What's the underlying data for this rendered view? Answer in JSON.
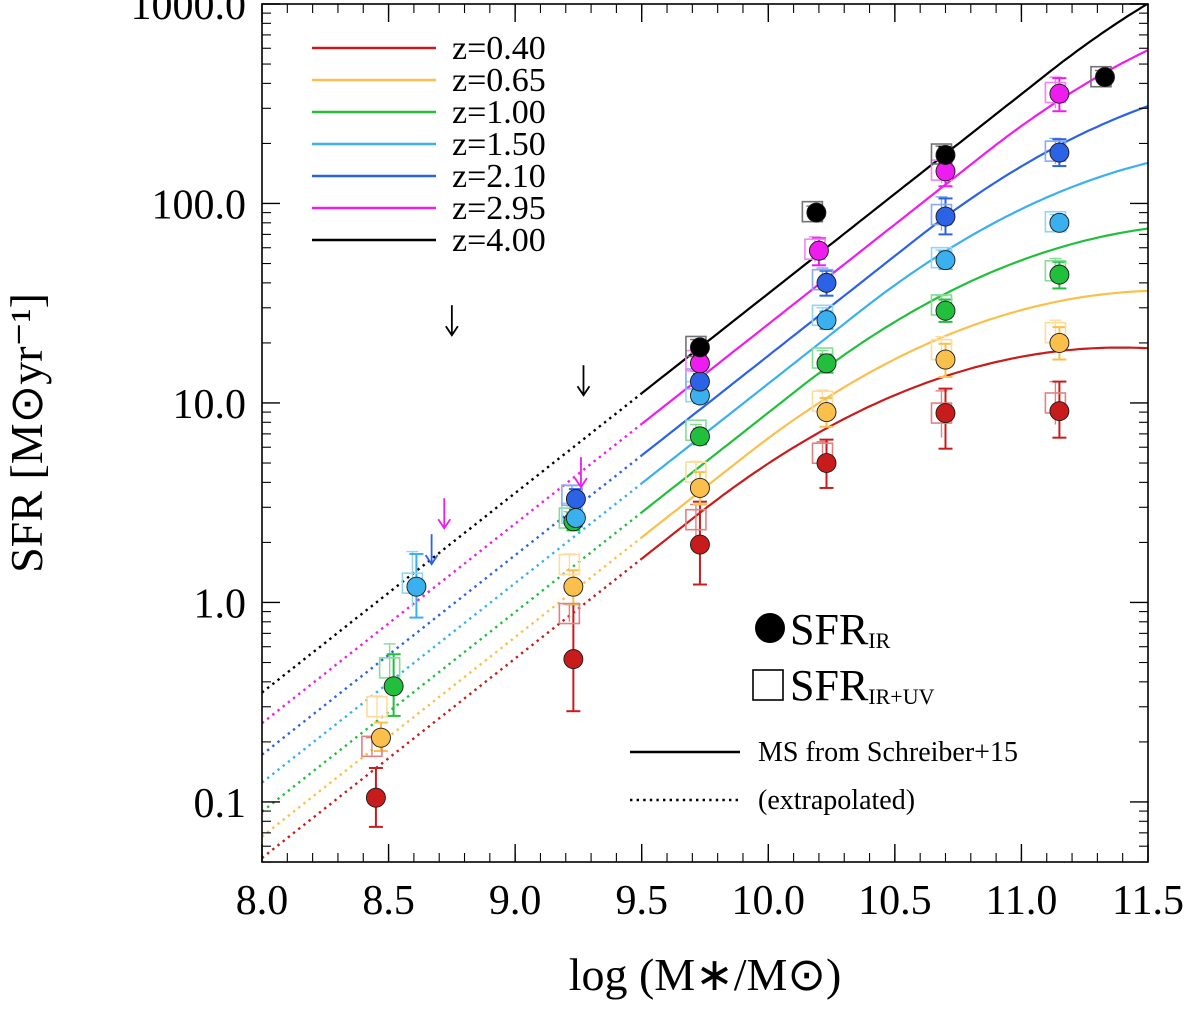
{
  "chart_data": {
    "type": "scatter",
    "title": "",
    "xlabel": "log (M∗/M⊙)",
    "ylabel": "SFR [M⊙yr⁻¹]",
    "xlim": [
      8.0,
      11.5
    ],
    "ylim": [
      0.05,
      1000
    ],
    "yscale": "log",
    "x_ticks": [
      8.0,
      8.5,
      9.0,
      9.5,
      10.0,
      10.5,
      11.0,
      11.5
    ],
    "x_tick_labels": [
      "8.0",
      "8.5",
      "9.0",
      "9.5",
      "10.0",
      "10.5",
      "11.0",
      "11.5"
    ],
    "y_ticks": [
      0.1,
      1,
      10,
      100,
      1000
    ],
    "y_tick_labels": [
      "0.1",
      "1.0",
      "10.0",
      "100.0",
      "1000.0"
    ],
    "legend_position": "top-left",
    "ms_model": "Schreiber+15",
    "ms_solid_from_logm": 9.5,
    "series": [
      {
        "name": "z=0.40",
        "z": 0.4,
        "color": "#c81c1c",
        "points": [
          {
            "x": 8.45,
            "ir": 0.105,
            "ir_lo": 0.075,
            "ir_hi": 0.148,
            "iruv": 0.19,
            "iruv_lo": 0.17,
            "iruv_hi": 0.21
          },
          {
            "x": 9.23,
            "ir": 0.52,
            "ir_lo": 0.285,
            "ir_hi": 0.98,
            "iruv": 0.88,
            "iruv_lo": 0.8,
            "iruv_hi": 0.98
          },
          {
            "x": 9.73,
            "ir": 1.95,
            "ir_lo": 1.23,
            "ir_hi": 3.2,
            "iruv": 2.6,
            "iruv_lo": 2.1,
            "iruv_hi": 3.1
          },
          {
            "x": 10.23,
            "ir": 5.0,
            "ir_lo": 3.75,
            "ir_hi": 6.55,
            "iruv": 5.6,
            "iruv_lo": 4.8,
            "iruv_hi": 6.4
          },
          {
            "x": 10.7,
            "ir": 8.9,
            "ir_lo": 5.9,
            "ir_hi": 11.8,
            "iruv": 8.9,
            "iruv_lo": 6.7,
            "iruv_hi": 11.5
          },
          {
            "x": 11.15,
            "ir": 9.1,
            "ir_lo": 6.7,
            "ir_hi": 12.8,
            "iruv": 10.0,
            "iruv_lo": 7.8,
            "iruv_hi": 12.8
          }
        ]
      },
      {
        "name": "z=0.65",
        "z": 0.65,
        "color": "#fbbf4c",
        "points": [
          {
            "x": 8.47,
            "ir": 0.21,
            "ir_lo": 0.18,
            "ir_hi": 0.25,
            "iruv": 0.3,
            "iruv_lo": 0.26,
            "iruv_hi": 0.34
          },
          {
            "x": 9.23,
            "ir": 1.2,
            "ir_lo": 0.98,
            "ir_hi": 1.45,
            "iruv": 1.55,
            "iruv_lo": 1.35,
            "iruv_hi": 1.75
          },
          {
            "x": 9.73,
            "ir": 3.75,
            "ir_lo": 3.1,
            "ir_hi": 4.5,
            "iruv": 4.5,
            "iruv_lo": 3.9,
            "iruv_hi": 5.1
          },
          {
            "x": 10.23,
            "ir": 9.0,
            "ir_lo": 7.6,
            "ir_hi": 10.6,
            "iruv": 10.2,
            "iruv_lo": 8.9,
            "iruv_hi": 11.6
          },
          {
            "x": 10.7,
            "ir": 16.5,
            "ir_lo": 13.5,
            "ir_hi": 19.8,
            "iruv": 18.5,
            "iruv_lo": 15.5,
            "iruv_hi": 21.5
          },
          {
            "x": 11.15,
            "ir": 20.0,
            "ir_lo": 16.5,
            "ir_hi": 24.0,
            "iruv": 22.5,
            "iruv_lo": 19.0,
            "iruv_hi": 26.0
          }
        ]
      },
      {
        "name": "z=1.00",
        "z": 1.0,
        "color": "#22bf3c",
        "points": [
          {
            "x": 8.52,
            "ir": 0.38,
            "ir_lo": 0.27,
            "ir_hi": 0.55,
            "iruv": 0.47,
            "iruv_lo": 0.38,
            "iruv_hi": 0.62
          },
          {
            "x": 9.23,
            "ir": 2.55,
            "ir_lo": 2.3,
            "ir_hi": 2.8,
            "iruv": 2.65,
            "iruv_lo": 2.45,
            "iruv_hi": 2.85
          },
          {
            "x": 9.73,
            "ir": 6.8,
            "ir_lo": 6.2,
            "ir_hi": 7.4,
            "iruv": 7.3,
            "iruv_lo": 6.8,
            "iruv_hi": 7.8
          },
          {
            "x": 10.23,
            "ir": 15.8,
            "ir_lo": 14.2,
            "ir_hi": 17.5,
            "iruv": 16.8,
            "iruv_lo": 15.4,
            "iruv_hi": 18.3
          },
          {
            "x": 10.7,
            "ir": 29.0,
            "ir_lo": 25.5,
            "ir_hi": 33.0,
            "iruv": 31.0,
            "iruv_lo": 28.0,
            "iruv_hi": 34.5
          },
          {
            "x": 11.15,
            "ir": 44.0,
            "ir_lo": 37.5,
            "ir_hi": 51.0,
            "iruv": 46.0,
            "iruv_lo": 40.0,
            "iruv_hi": 53.0
          }
        ]
      },
      {
        "name": "z=1.50",
        "z": 1.5,
        "color": "#3ab0ee",
        "points": [
          {
            "x": 8.61,
            "ir": 1.2,
            "ir_lo": 0.84,
            "ir_hi": 1.75,
            "iruv": 1.25,
            "iruv_lo": 0.95,
            "iruv_hi": 1.8
          },
          {
            "x": 9.24,
            "ir": 2.65,
            "ir_lo": 2.4,
            "ir_hi": 2.9,
            "iruv": 2.8,
            "iruv_lo": 2.55,
            "iruv_hi": 3.05
          },
          {
            "x": 9.73,
            "ir": 10.9,
            "ir_lo": 10.0,
            "ir_hi": 11.9,
            "iruv": 11.4,
            "iruv_lo": 10.5,
            "iruv_hi": 12.3
          },
          {
            "x": 10.23,
            "ir": 26.0,
            "ir_lo": 23.5,
            "ir_hi": 28.8,
            "iruv": 27.5,
            "iruv_lo": 25.0,
            "iruv_hi": 30.0
          },
          {
            "x": 10.7,
            "ir": 52.0,
            "ir_lo": 47.0,
            "ir_hi": 57.5,
            "iruv": 53.5,
            "iruv_lo": 49.0,
            "iruv_hi": 58.5
          },
          {
            "x": 11.15,
            "ir": 80.0,
            "ir_lo": 73.0,
            "ir_hi": 87.0,
            "iruv": 81.0,
            "iruv_lo": 75.0,
            "iruv_hi": 88.0
          }
        ]
      },
      {
        "name": "z=2.10",
        "z": 2.1,
        "color": "#2b62e6",
        "points": [
          {
            "x": 9.24,
            "ir": 3.3,
            "ir_lo": 2.95,
            "ir_hi": 3.7,
            "iruv": 3.45,
            "iruv_lo": 3.1,
            "iruv_hi": 3.85
          },
          {
            "x": 9.73,
            "ir": 12.8,
            "ir_lo": 11.6,
            "ir_hi": 14.0,
            "iruv": 13.2,
            "iruv_lo": 12.1,
            "iruv_hi": 14.4
          },
          {
            "x": 10.23,
            "ir": 40.0,
            "ir_lo": 34.5,
            "ir_hi": 46.0,
            "iruv": 41.5,
            "iruv_lo": 36.0,
            "iruv_hi": 47.5
          },
          {
            "x": 10.7,
            "ir": 86.0,
            "ir_lo": 70.0,
            "ir_hi": 106.0,
            "iruv": 88.0,
            "iruv_lo": 73.0,
            "iruv_hi": 108.0
          },
          {
            "x": 11.15,
            "ir": 180.0,
            "ir_lo": 154.0,
            "ir_hi": 210.0,
            "iruv": 183.0,
            "iruv_lo": 158.0,
            "iruv_hi": 212.0
          }
        ]
      },
      {
        "name": "z=2.95",
        "z": 2.95,
        "color": "#ee1cee",
        "points": [
          {
            "x": 9.73,
            "ir": 15.8,
            "ir_lo": 14.5,
            "ir_hi": 17.2,
            "iruv": 16.3,
            "iruv_lo": 15.0,
            "iruv_hi": 17.8
          },
          {
            "x": 10.2,
            "ir": 58.0,
            "ir_lo": 49.0,
            "ir_hi": 67.0,
            "iruv": 59.0,
            "iruv_lo": 51.0,
            "iruv_hi": 68.0
          },
          {
            "x": 10.7,
            "ir": 145.0,
            "ir_lo": 122.0,
            "ir_hi": 170.0,
            "iruv": 147.0,
            "iruv_lo": 126.0,
            "iruv_hi": 172.0
          },
          {
            "x": 11.15,
            "ir": 355.0,
            "ir_lo": 290.0,
            "ir_hi": 425.0,
            "iruv": 360.0,
            "iruv_lo": 300.0,
            "iruv_hi": 430.0
          }
        ]
      },
      {
        "name": "z=4.00",
        "z": 4.0,
        "color": "#000000",
        "points": [
          {
            "x": 9.73,
            "ir": 19.0,
            "ir_lo": 17.5,
            "ir_hi": 20.5,
            "iruv": 19.2,
            "iruv_lo": 17.8,
            "iruv_hi": 20.8
          },
          {
            "x": 10.19,
            "ir": 90.0,
            "ir_lo": 84.0,
            "ir_hi": 96.0,
            "iruv": 91.0,
            "iruv_lo": 85.0,
            "iruv_hi": 97.0
          },
          {
            "x": 10.7,
            "ir": 175.0,
            "ir_lo": 160.0,
            "ir_hi": 192.0,
            "iruv": 177.0,
            "iruv_lo": 162.0,
            "iruv_hi": 194.0
          },
          {
            "x": 11.33,
            "ir": 430.0,
            "ir_lo": 400.0,
            "ir_hi": 462.0,
            "iruv": 432.0,
            "iruv_lo": 402.0,
            "iruv_hi": 464.0
          }
        ]
      }
    ],
    "upper_limits": [
      {
        "x": 8.75,
        "y": 26.0,
        "color": "#000000"
      },
      {
        "x": 9.27,
        "y": 13.0,
        "color": "#000000"
      },
      {
        "x": 8.72,
        "y": 2.8,
        "color": "#ee1cee"
      },
      {
        "x": 9.26,
        "y": 4.5,
        "color": "#ee1cee"
      },
      {
        "x": 8.67,
        "y": 1.85,
        "color": "#2b62e6"
      }
    ],
    "marker_legend": [
      {
        "symbol": "filled-circle",
        "label": "SFR",
        "sub": "IR"
      },
      {
        "symbol": "open-square",
        "label": "SFR",
        "sub": "IR+UV"
      }
    ],
    "line_legend": [
      {
        "style": "solid",
        "label": "MS from Schreiber+15"
      },
      {
        "style": "dotted",
        "label": "(extrapolated)"
      }
    ]
  }
}
